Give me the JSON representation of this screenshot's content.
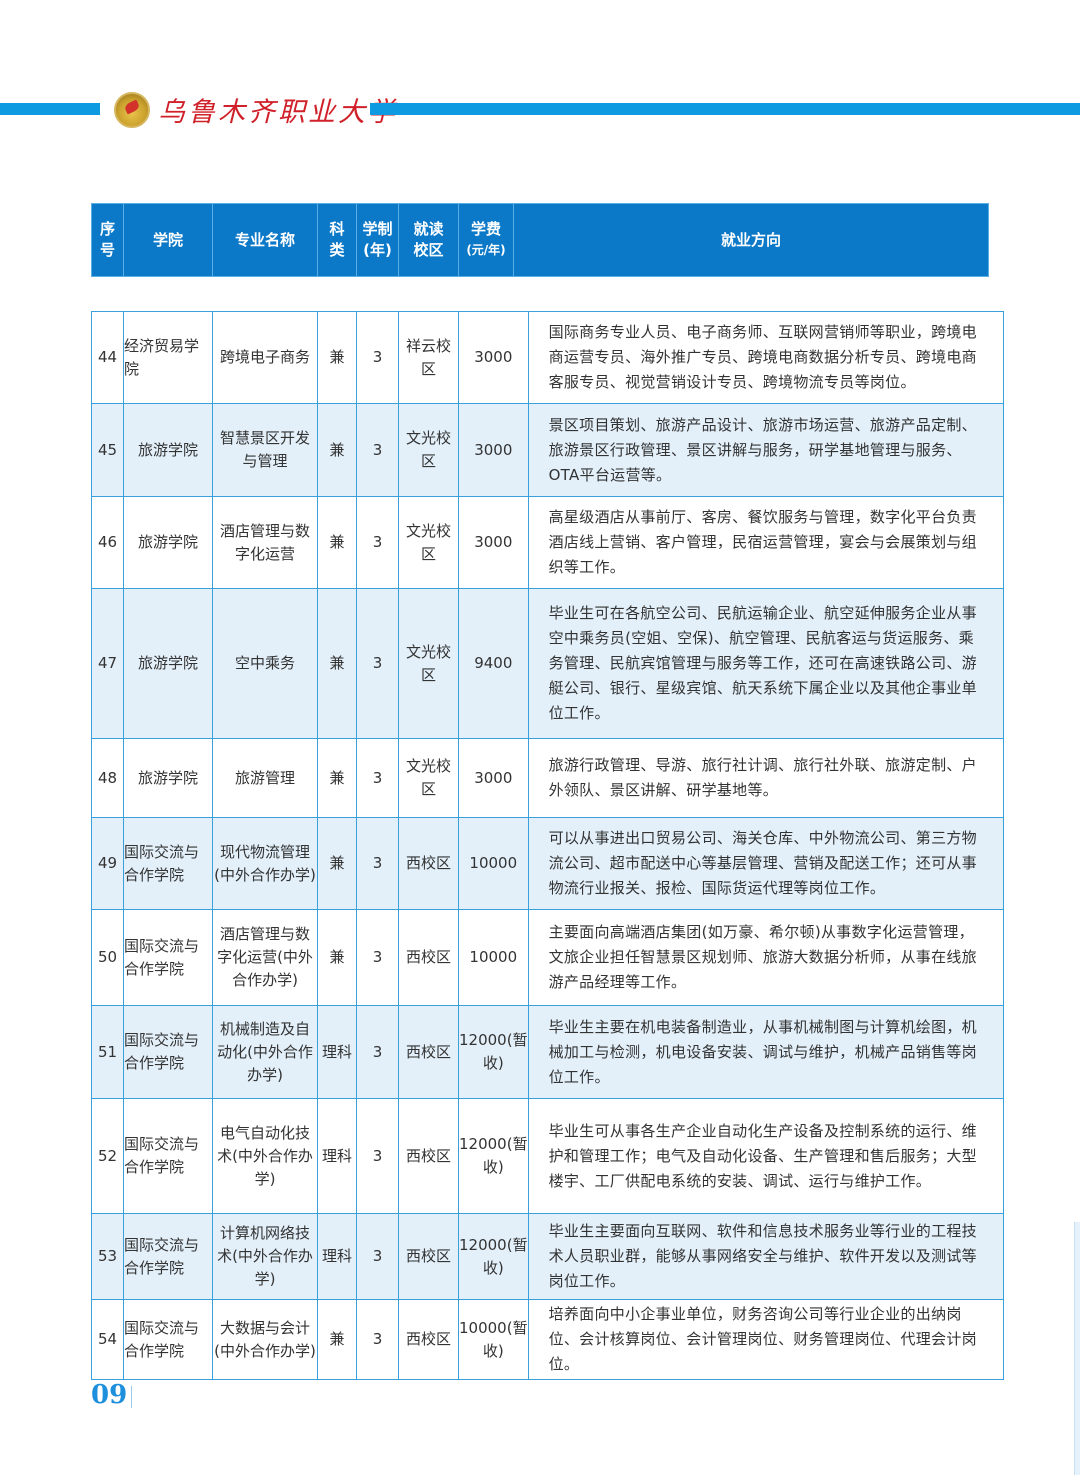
{
  "header": {
    "school_name": "乌鲁木齐职业大学"
  },
  "table": {
    "columns": [
      "序号",
      "学院",
      "专业名称",
      "科类",
      "学制(年)",
      "就读校区",
      "学费(元/年)",
      "就业方向"
    ],
    "column_display": {
      "no": "序\n号",
      "college": "学院",
      "major": "专业名称",
      "category": "科\n类",
      "years": "学制\n(年)",
      "campus": "就读\n校区",
      "fee_top": "学费",
      "fee_unit": "(元/年)",
      "career": "就业方向"
    },
    "rows": [
      {
        "no": "44",
        "college": "经济贸易学院",
        "major": "跨境电子商务",
        "category": "兼",
        "years": "3",
        "campus": "祥云校区",
        "fee": "3000",
        "career": "国际商务专业人员、电子商务师、互联网营销师等职业，跨境电商运营专员、海外推广专员、跨境电商数据分析专员、跨境电商客服专员、视觉营销设计专员、跨境物流专员等岗位。"
      },
      {
        "no": "45",
        "college": "旅游学院",
        "major": "智慧景区开发与管理",
        "category": "兼",
        "years": "3",
        "campus": "文光校区",
        "fee": "3000",
        "career": "景区项目策划、旅游产品设计、旅游市场运营、旅游产品定制、旅游景区行政管理、景区讲解与服务，研学基地管理与服务、OTA平台运营等。"
      },
      {
        "no": "46",
        "college": "旅游学院",
        "major": "酒店管理与数字化运营",
        "category": "兼",
        "years": "3",
        "campus": "文光校区",
        "fee": "3000",
        "career": "高星级酒店从事前厅、客房、餐饮服务与管理，数字化平台负责酒店线上营销、客户管理，民宿运营管理，宴会与会展策划与组织等工作。"
      },
      {
        "no": "47",
        "college": "旅游学院",
        "major": "空中乘务",
        "category": "兼",
        "years": "3",
        "campus": "文光校区",
        "fee": "9400",
        "career": "毕业生可在各航空公司、民航运输企业、航空延伸服务企业从事空中乘务员(空姐、空保)、航空管理、民航客运与货运服务、乘务管理、民航宾馆管理与服务等工作，还可在高速铁路公司、游艇公司、银行、星级宾馆、航天系统下属企业以及其他企事业单位工作。"
      },
      {
        "no": "48",
        "college": "旅游学院",
        "major": "旅游管理",
        "category": "兼",
        "years": "3",
        "campus": "文光校区",
        "fee": "3000",
        "career": "旅游行政管理、导游、旅行社计调、旅行社外联、旅游定制、户外领队、景区讲解、研学基地等。"
      },
      {
        "no": "49",
        "college": "国际交流与合作学院",
        "major": "现代物流管理(中外合作办学)",
        "category": "兼",
        "years": "3",
        "campus": "西校区",
        "fee": "10000",
        "career": "可以从事进出口贸易公司、海关仓库、中外物流公司、第三方物流公司、超市配送中心等基层管理、营销及配送工作；还可从事物流行业报关、报检、国际货运代理等岗位工作。"
      },
      {
        "no": "50",
        "college": "国际交流与合作学院",
        "major": "酒店管理与数字化运营(中外合作办学)",
        "category": "兼",
        "years": "3",
        "campus": "西校区",
        "fee": "10000",
        "career": "主要面向高端酒店集团(如万豪、希尔顿)从事数字化运营管理，文旅企业担任智慧景区规划师、旅游大数据分析师，从事在线旅游产品经理等工作。"
      },
      {
        "no": "51",
        "college": "国际交流与合作学院",
        "major": "机械制造及自动化(中外合作办学)",
        "category": "理科",
        "years": "3",
        "campus": "西校区",
        "fee": "12000(暂收)",
        "career": "毕业生主要在机电装备制造业，从事机械制图与计算机绘图，机械加工与检测，机电设备安装、调试与维护，机械产品销售等岗位工作。"
      },
      {
        "no": "52",
        "college": "国际交流与合作学院",
        "major": "电气自动化技术(中外合作办学)",
        "category": "理科",
        "years": "3",
        "campus": "西校区",
        "fee": "12000(暂收)",
        "career": "毕业生可从事各生产企业自动化生产设备及控制系统的运行、维护和管理工作；电气及自动化设备、生产管理和售后服务；大型楼宇、工厂供配电系统的安装、调试、运行与维护工作。"
      },
      {
        "no": "53",
        "college": "国际交流与合作学院",
        "major": "计算机网络技术(中外合作办学)",
        "category": "理科",
        "years": "3",
        "campus": "西校区",
        "fee": "12000(暂收)",
        "career": "毕业生主要面向互联网、软件和信息技术服务业等行业的工程技术人员职业群，能够从事网络安全与维护、软件开发以及测试等岗位工作。"
      },
      {
        "no": "54",
        "college": "国际交流与合作学院",
        "major": "大数据与会计(中外合作办学)",
        "category": "兼",
        "years": "3",
        "campus": "西校区",
        "fee": "10000(暂收)",
        "career": "培养面向中小企事业单位，财务咨询公司等行业企业的出纳岗位、会计核算岗位、会计管理岗位、财务管理岗位、代理会计岗位。"
      }
    ]
  },
  "footer": {
    "page_number": "09"
  },
  "colors": {
    "brand_blue": "#0e9ae0",
    "header_blue": "#0b78c8",
    "row_shade": "#e3f0fa",
    "school_red": "#d0202a"
  }
}
